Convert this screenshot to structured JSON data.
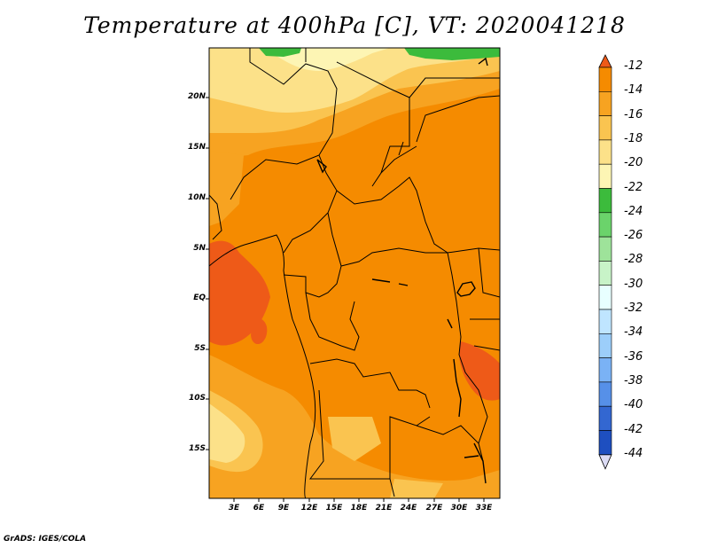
{
  "title": "Temperature at 400hPa [C], VT: 2020041218",
  "credit": "GrADS: IGES/COLA",
  "map": {
    "variable": "Temperature",
    "level": "400hPa",
    "units": "C",
    "valid_time": "2020041218",
    "lat_labels": [
      "20N",
      "15N",
      "10N",
      "5N",
      "EQ",
      "5S",
      "10S",
      "15S"
    ],
    "lon_labels": [
      "3E",
      "6E",
      "9E",
      "12E",
      "15E",
      "18E",
      "21E",
      "24E",
      "27E",
      "30E",
      "33E"
    ]
  },
  "colorbar": {
    "labels": [
      "-12",
      "-14",
      "-16",
      "-18",
      "-20",
      "-22",
      "-24",
      "-26",
      "-28",
      "-30",
      "-32",
      "-34",
      "-36",
      "-38",
      "-40",
      "-42",
      "-44"
    ],
    "colors": [
      "#ee5a18",
      "#f58b00",
      "#f7a321",
      "#fac450",
      "#fce189",
      "#fdf5b4",
      "#3cbb3c",
      "#6bd36b",
      "#9ee39a",
      "#c8f3c8",
      "#e8ffff",
      "#bfe5ff",
      "#9ccefa",
      "#7ab2f5",
      "#5690e8",
      "#3367d1",
      "#1e4fc0",
      "#0f37a8",
      "#0f1f7a",
      "#dcdcf5"
    ]
  }
}
